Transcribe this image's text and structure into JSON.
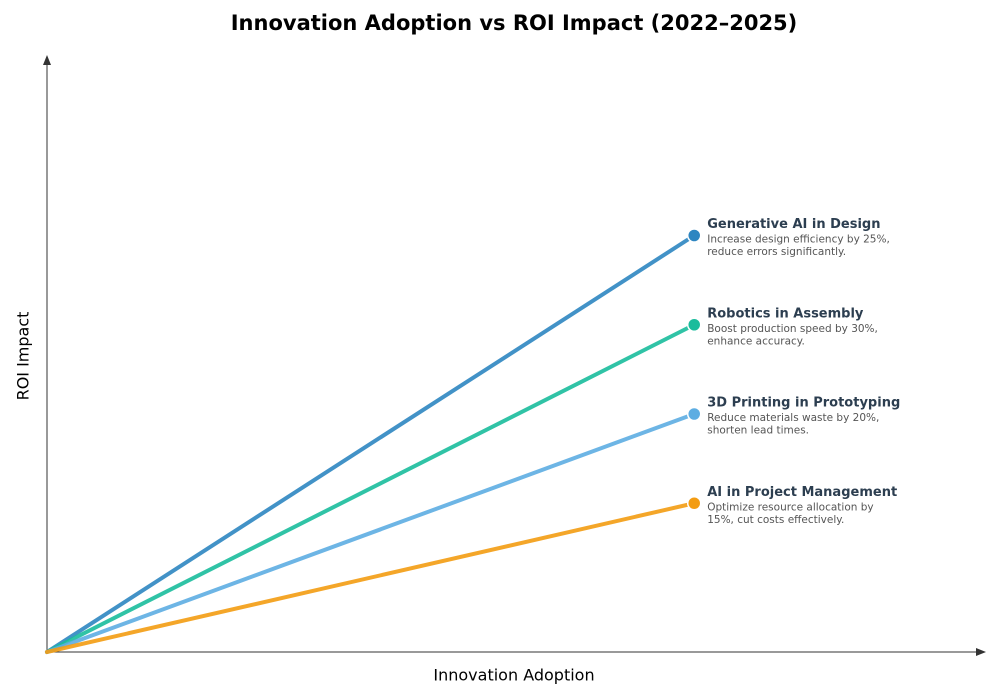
{
  "chart_data": {
    "type": "line",
    "title": "Innovation Adoption vs ROI Impact (2022–2025)",
    "xlabel": "Innovation Adoption",
    "ylabel": "ROI Impact",
    "xlim": [
      0,
      1
    ],
    "ylim": [
      0,
      1
    ],
    "series": [
      {
        "name": "Generative AI in Design",
        "color": "#2e86c1",
        "x": [
          0,
          0.69
        ],
        "values": [
          0,
          0.7
        ],
        "description": [
          "Increase design efficiency by 25%,",
          "reduce errors significantly."
        ]
      },
      {
        "name": "Robotics in Assembly",
        "color": "#1abc9c",
        "x": [
          0,
          0.69
        ],
        "values": [
          0,
          0.55
        ],
        "description": [
          "Boost production speed by 30%,",
          "enhance accuracy."
        ]
      },
      {
        "name": "3D Printing in Prototyping",
        "color": "#5dade2",
        "x": [
          0,
          0.69
        ],
        "values": [
          0,
          0.4
        ],
        "description": [
          "Reduce materials waste by 20%,",
          "shorten lead times."
        ]
      },
      {
        "name": "AI in Project Management",
        "color": "#f39c12",
        "x": [
          0,
          0.69
        ],
        "values": [
          0,
          0.25
        ],
        "description": [
          "Optimize resource allocation by",
          "15%, cut costs effectively."
        ]
      }
    ]
  }
}
